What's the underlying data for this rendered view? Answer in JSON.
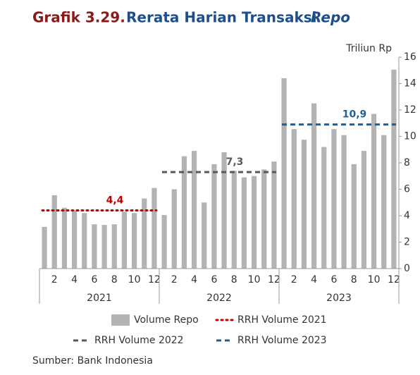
{
  "chart_data": {
    "type": "bar",
    "title": {
      "number": "Grafik 3.29.",
      "text": "Rerata Harian Transaksi",
      "emphasis": "Repo"
    },
    "y_axis_label": "Triliun Rp",
    "source": "Sumber: Bank Indonesia",
    "categories": [
      null,
      "2",
      null,
      "4",
      null,
      "6",
      null,
      "8",
      null,
      "10",
      null,
      "12",
      null,
      "2",
      null,
      "4",
      null,
      "6",
      null,
      "8",
      null,
      "10",
      null,
      "12",
      null,
      "2",
      null,
      "4",
      null,
      "6",
      null,
      "8",
      null,
      "10",
      null,
      "12"
    ],
    "groups": [
      "2021",
      "2022",
      "2023"
    ],
    "series": [
      {
        "name": "Volume Repo",
        "color": "#b3b3b3",
        "values": [
          3.15,
          5.55,
          4.6,
          4.4,
          4.2,
          3.35,
          3.3,
          3.35,
          4.3,
          4.2,
          5.3,
          6.1,
          4.05,
          6.0,
          8.5,
          8.9,
          5.0,
          7.9,
          8.8,
          7.4,
          6.9,
          7.0,
          7.5,
          8.1,
          14.4,
          10.55,
          9.75,
          12.5,
          9.2,
          10.55,
          10.1,
          7.9,
          8.9,
          11.7,
          10.1,
          15.05
        ]
      }
    ],
    "reference_lines": [
      {
        "name": "RRH Volume 2021",
        "value": 4.4,
        "value_label": "4,4",
        "color": "#c00000",
        "style": "dotted",
        "group": 0
      },
      {
        "name": "RRH Volume 2022",
        "value": 7.3,
        "value_label": "7,3",
        "color": "#595959",
        "style": "dashed",
        "group": 1
      },
      {
        "name": "RRH Volume 2023",
        "value": 10.9,
        "value_label": "10,9",
        "color": "#1f5f99",
        "style": "dashed",
        "group": 2
      }
    ],
    "ylim": [
      0,
      16
    ],
    "yticks": [
      0,
      2,
      4,
      6,
      8,
      10,
      12,
      14,
      16
    ],
    "y_axis_side": "right"
  }
}
